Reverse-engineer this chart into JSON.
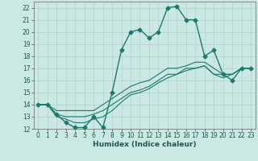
{
  "xlabel": "Humidex (Indice chaleur)",
  "background_color": "#cce8e4",
  "grid_color": "#aad4cc",
  "line_color": "#1a7a6e",
  "xlim": [
    -0.5,
    23.5
  ],
  "ylim": [
    12,
    22.5
  ],
  "yticks": [
    12,
    13,
    14,
    15,
    16,
    17,
    18,
    19,
    20,
    21,
    22
  ],
  "xticks": [
    0,
    1,
    2,
    3,
    4,
    5,
    6,
    7,
    8,
    9,
    10,
    11,
    12,
    13,
    14,
    15,
    16,
    17,
    18,
    19,
    20,
    21,
    22,
    23
  ],
  "series": [
    {
      "x": [
        0,
        1,
        2,
        3,
        4,
        5,
        6,
        7,
        8,
        9,
        10,
        11,
        12,
        13,
        14,
        15,
        16,
        17,
        18,
        19,
        20,
        21,
        22,
        23
      ],
      "y": [
        14,
        14,
        13.2,
        12.5,
        12.1,
        12.1,
        13.0,
        12.1,
        15.0,
        18.5,
        20.0,
        20.2,
        19.5,
        20.0,
        22.0,
        22.1,
        21.0,
        21.0,
        18.0,
        18.5,
        16.5,
        16.0,
        17.0,
        17.0
      ],
      "marker": "D",
      "markersize": 2.5,
      "linewidth": 1.0
    },
    {
      "x": [
        0,
        1,
        2,
        3,
        4,
        5,
        6,
        7,
        8,
        9,
        10,
        11,
        12,
        13,
        14,
        15,
        16,
        17,
        18,
        19,
        20,
        21,
        22,
        23
      ],
      "y": [
        14.0,
        14.0,
        13.5,
        13.5,
        13.5,
        13.5,
        13.5,
        14.0,
        14.5,
        15.0,
        15.5,
        15.8,
        16.0,
        16.5,
        17.0,
        17.0,
        17.2,
        17.5,
        17.5,
        17.0,
        16.5,
        16.5,
        17.0,
        17.0
      ],
      "marker": null,
      "linewidth": 0.8
    },
    {
      "x": [
        0,
        1,
        2,
        3,
        4,
        5,
        6,
        7,
        8,
        9,
        10,
        11,
        12,
        13,
        14,
        15,
        16,
        17,
        18,
        19,
        20,
        21,
        22,
        23
      ],
      "y": [
        14.0,
        14.0,
        13.2,
        13.0,
        13.0,
        13.0,
        13.2,
        13.5,
        14.0,
        14.5,
        15.0,
        15.2,
        15.5,
        16.0,
        16.5,
        16.5,
        17.0,
        17.0,
        17.2,
        16.5,
        16.5,
        16.5,
        17.0,
        17.0
      ],
      "marker": null,
      "linewidth": 0.8
    },
    {
      "x": [
        0,
        1,
        2,
        3,
        4,
        5,
        6,
        7,
        8,
        9,
        10,
        11,
        12,
        13,
        14,
        15,
        16,
        17,
        18,
        19,
        20,
        21,
        22,
        23
      ],
      "y": [
        14.0,
        14.0,
        13.0,
        12.8,
        12.5,
        12.5,
        12.8,
        13.0,
        13.5,
        14.2,
        14.8,
        15.0,
        15.3,
        15.8,
        16.2,
        16.5,
        16.8,
        17.0,
        17.2,
        16.5,
        16.2,
        16.5,
        17.0,
        17.0
      ],
      "marker": null,
      "linewidth": 0.8
    }
  ]
}
